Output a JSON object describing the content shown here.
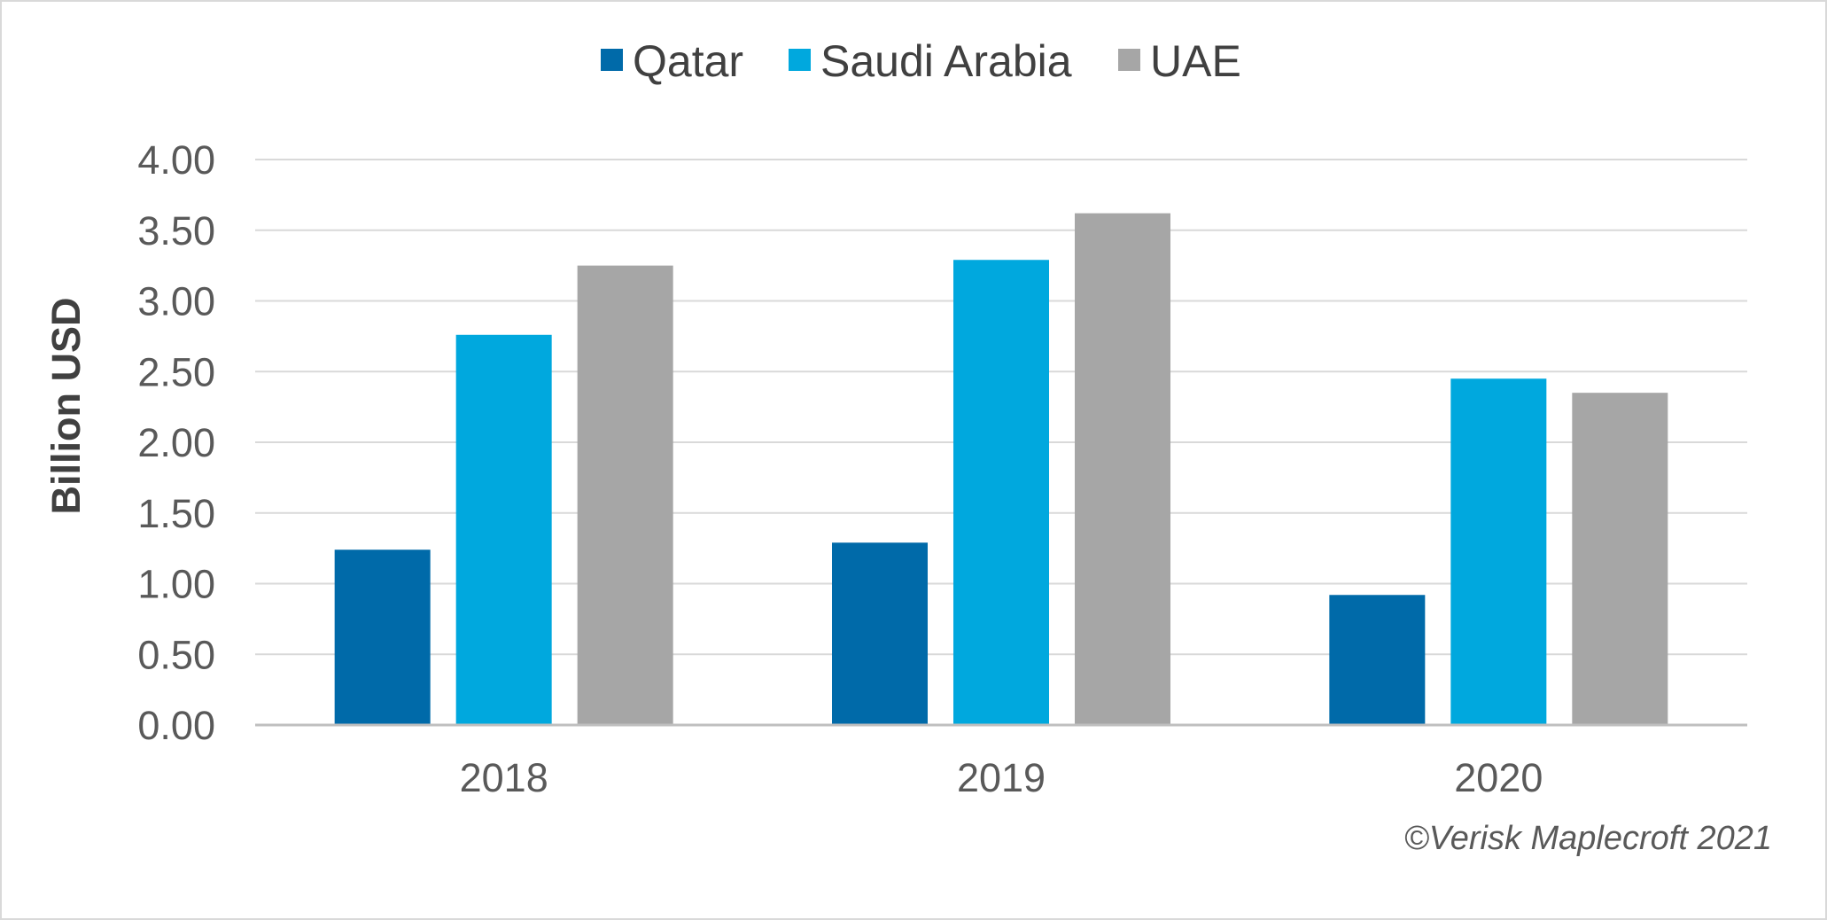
{
  "chart_data": {
    "type": "bar",
    "categories": [
      "2018",
      "2019",
      "2020"
    ],
    "series": [
      {
        "name": "Qatar",
        "color": "#006aa9",
        "values": [
          1.24,
          1.29,
          0.92
        ]
      },
      {
        "name": "Saudi Arabia",
        "color": "#00a8de",
        "values": [
          2.76,
          3.29,
          2.45
        ]
      },
      {
        "name": "UAE",
        "color": "#a6a6a6",
        "values": [
          3.25,
          3.62,
          2.35
        ]
      }
    ],
    "title": "",
    "xlabel": "",
    "ylabel": "Billion USD",
    "ylim": [
      0,
      4
    ],
    "yticks": [
      "0.00",
      "0.50",
      "1.00",
      "1.50",
      "2.00",
      "2.50",
      "3.00",
      "3.50",
      "4.00"
    ],
    "grid": true,
    "legend_position": "top-center",
    "gridline_color": "#d9d9d9",
    "axis_line_color": "#bfbfbf"
  },
  "credit": "©Verisk Maplecroft 2021"
}
